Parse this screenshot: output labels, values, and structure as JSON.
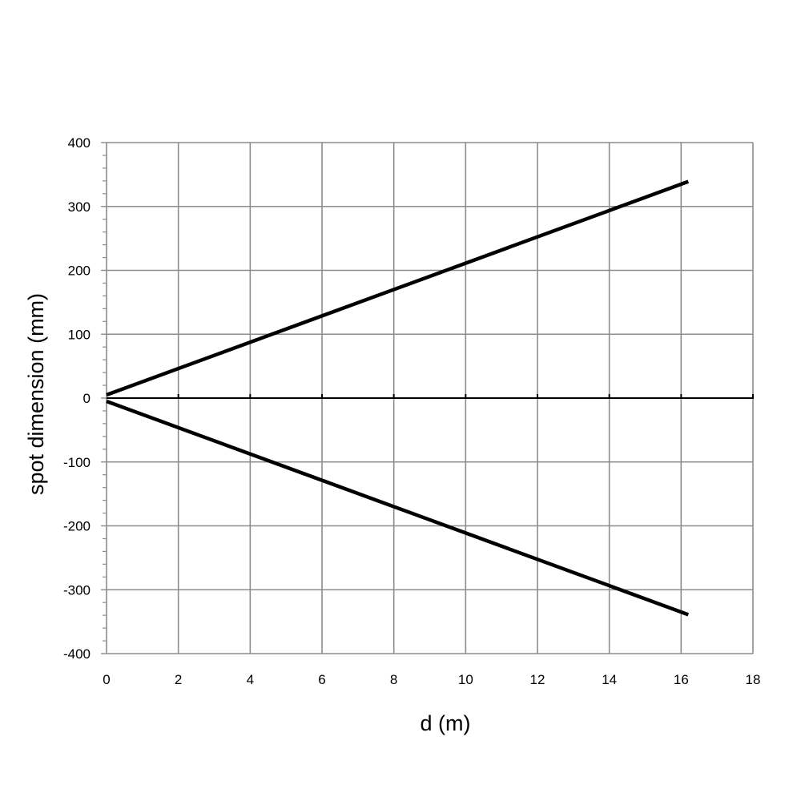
{
  "chart_data": {
    "type": "line",
    "title": "",
    "xlabel": "d (m)",
    "ylabel": "spot dimension (mm)",
    "xlim": [
      0,
      18
    ],
    "ylim": [
      -400,
      400
    ],
    "x_ticks": [
      "0",
      "2",
      "4",
      "6",
      "8",
      "10",
      "12",
      "14",
      "16",
      "18"
    ],
    "y_ticks": [
      "400",
      "300",
      "200",
      "100",
      "0",
      "-100",
      "-200",
      "-300",
      "-400"
    ],
    "x_tick_values": [
      0,
      2,
      4,
      6,
      8,
      10,
      12,
      14,
      16,
      18
    ],
    "y_tick_values": [
      400,
      300,
      200,
      100,
      0,
      -100,
      -200,
      -300,
      -400
    ],
    "grid": true,
    "series": [
      {
        "x": [
          0,
          16.2
        ],
        "y": [
          5,
          339
        ],
        "color": "#000000"
      },
      {
        "x": [
          0,
          16.2
        ],
        "y": [
          -5,
          -339
        ],
        "color": "#000000"
      }
    ],
    "colors": {
      "grid": "#8c8c8c",
      "axis": "#000000",
      "line": "#000000"
    }
  }
}
